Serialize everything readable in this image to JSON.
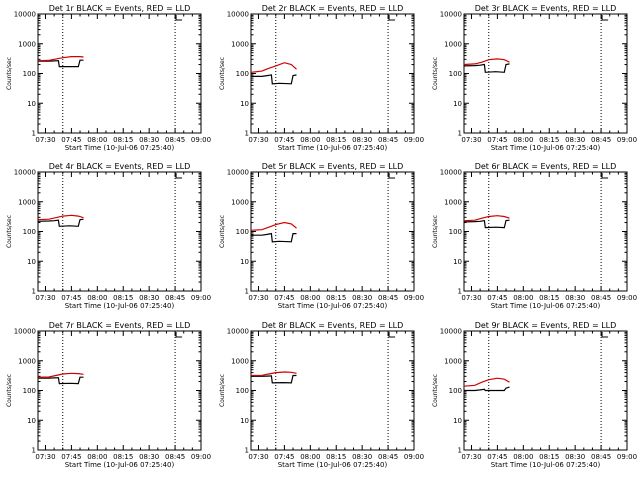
{
  "figure": {
    "ylabel": "Counts/sec",
    "xlabel": "Start Time (10-Jul-06 07:25:40)",
    "x_ticks": [
      "07:30",
      "07:45",
      "08:00",
      "08:15",
      "08:30",
      "08:45",
      "09:00"
    ],
    "y_ticks": [
      "1",
      "10",
      "100",
      "1000",
      "10000"
    ],
    "colors": {
      "events": "#000000",
      "lld": "#d00000",
      "frame": "#000000",
      "background": "#ffffff"
    }
  },
  "chart_data": [
    {
      "type": "line",
      "title": "Det 1r BLACK = Events, RED = LLD",
      "xlabel": "Start Time (10-Jul-06 07:25:40)",
      "ylabel": "Counts/sec",
      "x_unit": "minutes after 07:30",
      "xlim": [
        -4.33,
        90
      ],
      "ylim": [
        1,
        10000
      ],
      "y_scale": "log",
      "vlines": [
        10,
        75
      ],
      "marker_at": 75,
      "series": [
        {
          "name": "Events",
          "points": [
            [
              -4.3,
              260
            ],
            [
              2,
              260
            ],
            [
              5,
              265
            ],
            [
              7.5,
              270
            ],
            [
              8,
              170
            ],
            [
              14,
              170
            ],
            [
              19,
              170
            ],
            [
              20,
              280
            ],
            [
              22,
              280
            ]
          ]
        },
        {
          "name": "LLD",
          "points": [
            [
              -4.3,
              270
            ],
            [
              2,
              275
            ],
            [
              5,
              300
            ],
            [
              10,
              340
            ],
            [
              15,
              370
            ],
            [
              20,
              370
            ],
            [
              22,
              360
            ]
          ]
        }
      ]
    },
    {
      "type": "line",
      "title": "Det 2r BLACK = Events, RED = LLD",
      "xlabel": "Start Time (10-Jul-06 07:25:40)",
      "ylabel": "Counts/sec",
      "x_unit": "minutes after 07:30",
      "xlim": [
        -4.33,
        90
      ],
      "ylim": [
        1,
        10000
      ],
      "y_scale": "log",
      "vlines": [
        10,
        75
      ],
      "marker_at": 75,
      "series": [
        {
          "name": "Events",
          "points": [
            [
              -4.3,
              80
            ],
            [
              2,
              80
            ],
            [
              5,
              85
            ],
            [
              7.5,
              90
            ],
            [
              8,
              45
            ],
            [
              12,
              47
            ],
            [
              19,
              45
            ],
            [
              20,
              85
            ],
            [
              22,
              90
            ]
          ]
        },
        {
          "name": "LLD",
          "points": [
            [
              -4.3,
              110
            ],
            [
              2,
              120
            ],
            [
              6,
              150
            ],
            [
              10,
              180
            ],
            [
              15,
              230
            ],
            [
              19,
              200
            ],
            [
              22,
              140
            ]
          ]
        }
      ]
    },
    {
      "type": "line",
      "title": "Det 3r BLACK = Events, RED = LLD",
      "xlabel": "Start Time (10-Jul-06 07:25:40)",
      "ylabel": "Counts/sec",
      "x_unit": "minutes after 07:30",
      "xlim": [
        -4.33,
        90
      ],
      "ylim": [
        1,
        10000
      ],
      "y_scale": "log",
      "vlines": [
        10,
        75
      ],
      "marker_at": 75,
      "series": [
        {
          "name": "Events",
          "points": [
            [
              -4.3,
              180
            ],
            [
              2,
              185
            ],
            [
              5,
              190
            ],
            [
              7.5,
              200
            ],
            [
              8,
              110
            ],
            [
              14,
              115
            ],
            [
              19,
              110
            ],
            [
              20,
              200
            ],
            [
              22,
              210
            ]
          ]
        },
        {
          "name": "LLD",
          "points": [
            [
              -4.3,
              200
            ],
            [
              2,
              210
            ],
            [
              6,
              240
            ],
            [
              10,
              290
            ],
            [
              15,
              310
            ],
            [
              19,
              290
            ],
            [
              22,
              240
            ]
          ]
        }
      ]
    },
    {
      "type": "line",
      "title": "Det 4r BLACK = Events, RED = LLD",
      "xlabel": "Start Time (10-Jul-06 07:25:40)",
      "ylabel": "Counts/sec",
      "x_unit": "minutes after 07:30",
      "xlim": [
        -4.33,
        90
      ],
      "ylim": [
        1,
        10000
      ],
      "y_scale": "log",
      "vlines": [
        10,
        75
      ],
      "marker_at": 75,
      "series": [
        {
          "name": "Events",
          "points": [
            [
              -4.3,
              220
            ],
            [
              2,
              225
            ],
            [
              5,
              230
            ],
            [
              7.5,
              240
            ],
            [
              8,
              150
            ],
            [
              14,
              155
            ],
            [
              19,
              150
            ],
            [
              20,
              250
            ],
            [
              22,
              260
            ]
          ]
        },
        {
          "name": "LLD",
          "points": [
            [
              -4.3,
              250
            ],
            [
              2,
              260
            ],
            [
              6,
              290
            ],
            [
              10,
              330
            ],
            [
              15,
              350
            ],
            [
              19,
              330
            ],
            [
              22,
              290
            ]
          ]
        }
      ]
    },
    {
      "type": "line",
      "title": "Det 5r BLACK = Events, RED = LLD",
      "xlabel": "Start Time (10-Jul-06 07:25:40)",
      "ylabel": "Counts/sec",
      "x_unit": "minutes after 07:30",
      "xlim": [
        -4.33,
        90
      ],
      "ylim": [
        1,
        10000
      ],
      "y_scale": "log",
      "vlines": [
        10,
        75
      ],
      "marker_at": 75,
      "series": [
        {
          "name": "Events",
          "points": [
            [
              -4.3,
              75
            ],
            [
              2,
              75
            ],
            [
              5,
              80
            ],
            [
              7.5,
              85
            ],
            [
              8,
              45
            ],
            [
              12,
              47
            ],
            [
              19,
              45
            ],
            [
              20,
              85
            ],
            [
              22,
              85
            ]
          ]
        },
        {
          "name": "LLD",
          "points": [
            [
              -4.3,
              110
            ],
            [
              2,
              115
            ],
            [
              6,
              140
            ],
            [
              10,
              170
            ],
            [
              15,
              200
            ],
            [
              19,
              180
            ],
            [
              22,
              130
            ]
          ]
        }
      ]
    },
    {
      "type": "line",
      "title": "Det 6r BLACK = Events, RED = LLD",
      "xlabel": "Start Time (10-Jul-06 07:25:40)",
      "ylabel": "Counts/sec",
      "x_unit": "minutes after 07:30",
      "xlim": [
        -4.33,
        90
      ],
      "ylim": [
        1,
        10000
      ],
      "y_scale": "log",
      "vlines": [
        10,
        75
      ],
      "marker_at": 75,
      "series": [
        {
          "name": "Events",
          "points": [
            [
              -4.3,
              210
            ],
            [
              2,
              215
            ],
            [
              5,
              220
            ],
            [
              7.5,
              230
            ],
            [
              8,
              135
            ],
            [
              14,
              140
            ],
            [
              19,
              135
            ],
            [
              20,
              235
            ],
            [
              22,
              240
            ]
          ]
        },
        {
          "name": "LLD",
          "points": [
            [
              -4.3,
              230
            ],
            [
              2,
              240
            ],
            [
              6,
              280
            ],
            [
              10,
              320
            ],
            [
              15,
              340
            ],
            [
              19,
              320
            ],
            [
              22,
              280
            ]
          ]
        }
      ]
    },
    {
      "type": "line",
      "title": "Det 7r BLACK = Events, RED = LLD",
      "xlabel": "Start Time (10-Jul-06 07:25:40)",
      "ylabel": "Counts/sec",
      "x_unit": "minutes after 07:30",
      "xlim": [
        -4.33,
        90
      ],
      "ylim": [
        1,
        10000
      ],
      "y_scale": "log",
      "vlines": [
        10,
        75
      ],
      "marker_at": 75,
      "series": [
        {
          "name": "Events",
          "points": [
            [
              -4.3,
              260
            ],
            [
              2,
              260
            ],
            [
              5,
              265
            ],
            [
              7.5,
              270
            ],
            [
              8,
              170
            ],
            [
              14,
              175
            ],
            [
              19,
              170
            ],
            [
              20,
              280
            ],
            [
              22,
              280
            ]
          ]
        },
        {
          "name": "LLD",
          "points": [
            [
              -4.3,
              280
            ],
            [
              2,
              285
            ],
            [
              6,
              320
            ],
            [
              10,
              360
            ],
            [
              15,
              380
            ],
            [
              19,
              370
            ],
            [
              22,
              350
            ]
          ]
        }
      ]
    },
    {
      "type": "line",
      "title": "Det 8r BLACK = Events, RED = LLD",
      "xlabel": "Start Time (10-Jul-06 07:25:40)",
      "ylabel": "Counts/sec",
      "x_unit": "minutes after 07:30",
      "xlim": [
        -4.33,
        90
      ],
      "ylim": [
        1,
        10000
      ],
      "y_scale": "log",
      "vlines": [
        10,
        75
      ],
      "marker_at": 75,
      "series": [
        {
          "name": "Events",
          "points": [
            [
              -4.3,
              300
            ],
            [
              2,
              300
            ],
            [
              5,
              305
            ],
            [
              7.5,
              310
            ],
            [
              8,
              180
            ],
            [
              14,
              185
            ],
            [
              19,
              180
            ],
            [
              20,
              320
            ],
            [
              22,
              320
            ]
          ]
        },
        {
          "name": "LLD",
          "points": [
            [
              -4.3,
              320
            ],
            [
              2,
              325
            ],
            [
              6,
              360
            ],
            [
              10,
              400
            ],
            [
              15,
              420
            ],
            [
              19,
              410
            ],
            [
              22,
              380
            ]
          ]
        }
      ]
    },
    {
      "type": "line",
      "title": "Det 9r BLACK = Events, RED = LLD",
      "xlabel": "Start Time (10-Jul-06 07:25:40)",
      "ylabel": "Counts/sec",
      "x_unit": "minutes after 07:30",
      "xlim": [
        -4.33,
        90
      ],
      "ylim": [
        1,
        10000
      ],
      "y_scale": "log",
      "vlines": [
        10,
        75
      ],
      "marker_at": 75,
      "series": [
        {
          "name": "Events",
          "points": [
            [
              -4.3,
              100
            ],
            [
              2,
              100
            ],
            [
              5,
              105
            ],
            [
              7.5,
              110
            ],
            [
              8,
              100
            ],
            [
              14,
              100
            ],
            [
              19,
              100
            ],
            [
              20,
              120
            ],
            [
              22,
              130
            ]
          ]
        },
        {
          "name": "LLD",
          "points": [
            [
              -4.3,
              140
            ],
            [
              2,
              150
            ],
            [
              6,
              190
            ],
            [
              10,
              230
            ],
            [
              15,
              260
            ],
            [
              19,
              240
            ],
            [
              22,
              190
            ]
          ]
        }
      ]
    }
  ]
}
